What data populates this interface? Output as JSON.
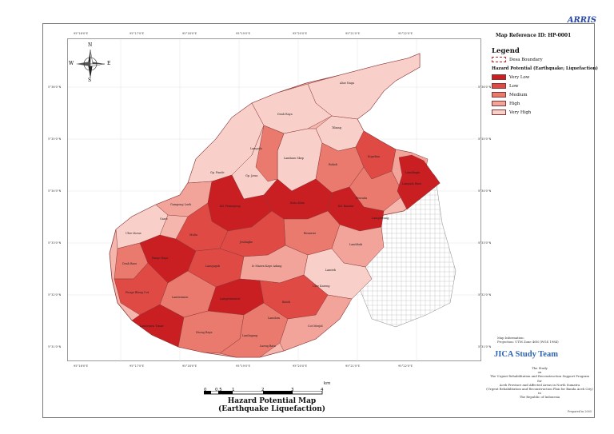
{
  "logo": "ARRIS",
  "map_reference": "Map Reference ID: HP-0001",
  "legend": {
    "title": "Legend",
    "boundary_label": "Desa Boundary",
    "hazard_heading": "Hazard Potential (Earthquake; Liquefaction)",
    "classes": [
      {
        "label": "Very Low",
        "color": "#c91e22"
      },
      {
        "label": "Low",
        "color": "#e04a45"
      },
      {
        "label": "Medium",
        "color": "#ea7a6e"
      },
      {
        "label": "High",
        "color": "#f3a49a"
      },
      {
        "label": "Very High",
        "color": "#f9cfca"
      }
    ]
  },
  "map_info": {
    "line1": "Map Information:",
    "line2": "Projection: UTM Zone 46N (WGS 1984)"
  },
  "team": "JICA Study Team",
  "study_text": [
    "The Study",
    "on",
    "The Urgent Rehabilitation and Reconstruction Support Program",
    "for",
    "Aceh Province and Affected Areas in North Sumatra",
    "(Urgent Rehabilitation and Reconstruction Plan for Banda Aceh City)",
    "in",
    "The Republic of Indonesia"
  ],
  "date_note": "Prepared in 2005",
  "map_title": [
    "Hazard Potential Map",
    "(Earthquake Liquefaction)"
  ],
  "scale": {
    "labels": [
      "0",
      "0.5",
      "1",
      "2",
      "3",
      "4"
    ],
    "unit": "km"
  },
  "compass": {
    "n": "N",
    "s": "S",
    "e": "E",
    "w": "W"
  },
  "grid_labels": {
    "top": [
      "95°16'0\"E",
      "95°17'0\"E",
      "95°18'0\"E",
      "95°19'0\"E",
      "95°20'0\"E",
      "95°21'0\"E",
      "95°22'0\"E"
    ],
    "bottom": [
      "95°16'0\"E",
      "95°17'0\"E",
      "95°18'0\"E",
      "95°19'0\"E",
      "95°20'0\"E",
      "95°21'0\"E",
      "95°22'0\"E"
    ],
    "left": [
      "5°36'0\"N",
      "5°35'0\"N",
      "5°34'0\"N",
      "5°33'0\"N",
      "5°32'0\"N",
      "5°31'0\"N"
    ],
    "right": [
      "5°36'0\"N",
      "5°35'0\"N",
      "5°34'0\"N",
      "5°33'0\"N",
      "5°32'0\"N",
      "5°31'0\"N"
    ]
  },
  "districts": [
    {
      "name": "Alue Naga",
      "level": 4
    },
    {
      "name": "Deah Raya",
      "level": 4
    },
    {
      "name": "Tibang",
      "level": 4
    },
    {
      "name": "Lampulo",
      "level": 3
    },
    {
      "name": "Lambaro Skep",
      "level": 4
    },
    {
      "name": "Rukoh",
      "level": 3
    },
    {
      "name": "Kopelma",
      "level": 2
    },
    {
      "name": "Peurada",
      "level": 3
    },
    {
      "name": "Gp. Pande",
      "level": 4
    },
    {
      "name": "Gp. Jawa",
      "level": 4
    },
    {
      "name": "Lamdingin",
      "level": 3
    },
    {
      "name": "Gampong Lueh",
      "level": 3
    },
    {
      "name": "Ulee Lheue",
      "level": 4
    },
    {
      "name": "Deah Baro",
      "level": 3
    },
    {
      "name": "Kd. Peunayong",
      "level": 0
    },
    {
      "name": "Kd. Bandar",
      "level": 0
    },
    {
      "name": "Kuta Alam",
      "level": 0
    },
    {
      "name": "Mulia",
      "level": 1
    },
    {
      "name": "Beurawe",
      "level": 2
    },
    {
      "name": "Lambhuk",
      "level": 3
    },
    {
      "name": "Jeulingke",
      "level": 1
    },
    {
      "name": "Pango Raya",
      "level": 1
    },
    {
      "name": "Lamgugob",
      "level": 2
    },
    {
      "name": "Ie Masen Kaye Adang",
      "level": 3
    },
    {
      "name": "Lamteh",
      "level": 3
    },
    {
      "name": "Ulee Kareng",
      "level": 3
    },
    {
      "name": "Lampineung",
      "level": 2
    },
    {
      "name": "Punge Blang Cut",
      "level": 1
    },
    {
      "name": "Lamteumen",
      "level": 2
    },
    {
      "name": "Lampeuneurut",
      "level": 1
    },
    {
      "name": "Batoh",
      "level": 1
    },
    {
      "name": "Lamlagang",
      "level": 2
    },
    {
      "name": "Cot Mesjid",
      "level": 2
    },
    {
      "name": "Lamtemen Timur",
      "level": 1
    },
    {
      "name": "Lhong Raya",
      "level": 2
    },
    {
      "name": "Lueng Bata",
      "level": 2
    },
    {
      "name": "Lampulo Baro",
      "level": 0
    },
    {
      "name": "Lamdom",
      "level": 2
    },
    {
      "name": "Garot",
      "level": 1
    }
  ]
}
